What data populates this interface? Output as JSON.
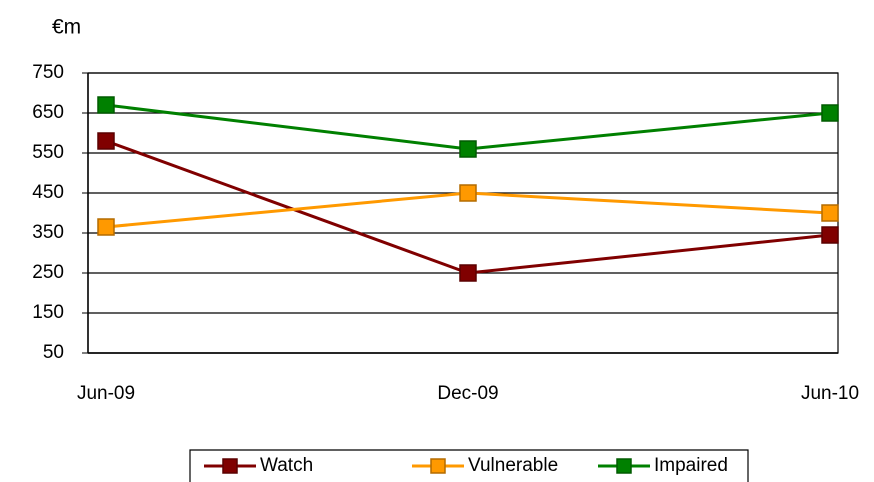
{
  "chart_data": {
    "type": "line",
    "y_label": "€m",
    "categories": [
      "Jun-09",
      "Dec-09",
      "Jun-10"
    ],
    "series": [
      {
        "name": "Watch",
        "color": "#800000",
        "values": [
          580,
          250,
          345
        ]
      },
      {
        "name": "Vulnerable",
        "color": "#ff9900",
        "values": [
          365,
          450,
          400
        ]
      },
      {
        "name": "Impaired",
        "color": "#008000",
        "values": [
          670,
          560,
          650
        ]
      }
    ],
    "ylim": [
      50,
      750
    ],
    "yticks": [
      50,
      150,
      250,
      350,
      450,
      550,
      650,
      750
    ],
    "grid": true,
    "legend": "bottom"
  }
}
